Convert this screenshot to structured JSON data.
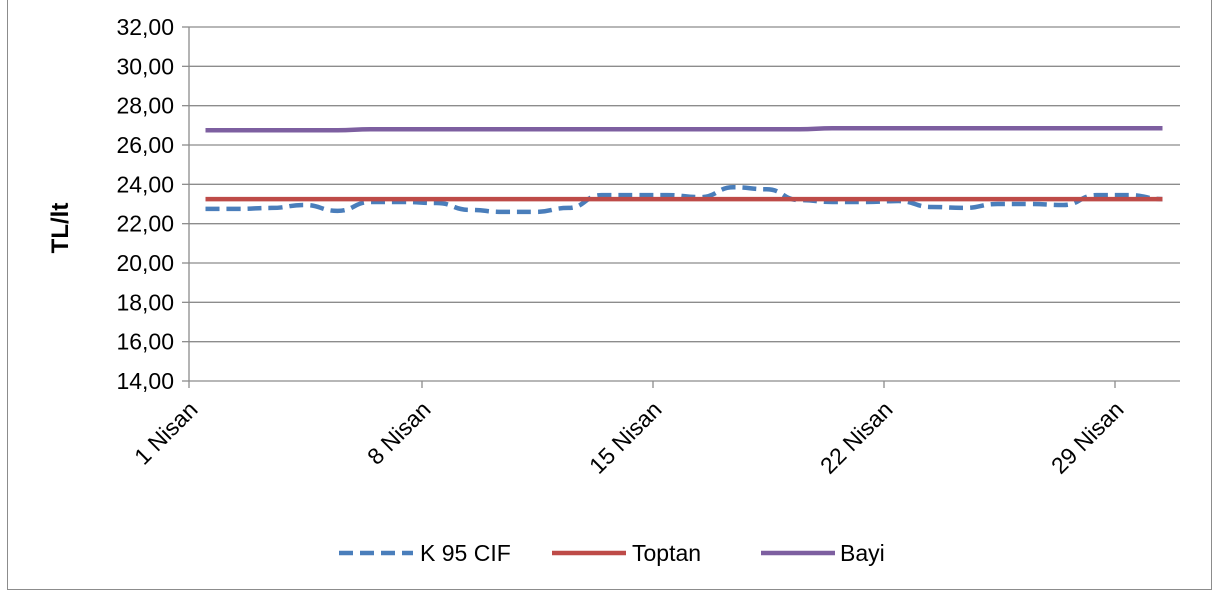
{
  "chart_data": {
    "type": "line",
    "title": "",
    "xlabel": "",
    "ylabel": "TL/lt",
    "ylim": [
      14,
      32
    ],
    "ytick_step": 2,
    "ytick_labels": [
      "14,00",
      "16,00",
      "18,00",
      "20,00",
      "22,00",
      "24,00",
      "26,00",
      "28,00",
      "30,00",
      "32,00"
    ],
    "x": [
      1,
      2,
      3,
      4,
      5,
      6,
      7,
      8,
      9,
      10,
      11,
      12,
      13,
      14,
      15,
      16,
      17,
      18,
      19,
      20,
      21,
      22,
      23,
      24,
      25,
      26,
      27,
      28,
      29,
      30
    ],
    "xtick_labels": [
      {
        "x": 1,
        "label": "1 Nisan"
      },
      {
        "x": 8,
        "label": "8 Nisan"
      },
      {
        "x": 15,
        "label": "15 Nisan"
      },
      {
        "x": 22,
        "label": "22 Nisan"
      },
      {
        "x": 29,
        "label": "29 Nisan"
      }
    ],
    "grid": "horizontal",
    "legend_position": "bottom",
    "series": [
      {
        "name": "K 95 CIF",
        "color": "#4a7ebb",
        "dash": "dashed",
        "values": [
          22.75,
          22.75,
          22.8,
          22.95,
          22.65,
          23.1,
          23.1,
          23.05,
          22.7,
          22.6,
          22.6,
          22.8,
          23.45,
          23.45,
          23.45,
          23.35,
          23.85,
          23.75,
          23.2,
          23.1,
          23.1,
          23.15,
          22.85,
          22.8,
          23.0,
          23.0,
          22.95,
          23.45,
          23.45,
          23.25
        ]
      },
      {
        "name": "Toptan",
        "color": "#be4b48",
        "dash": "solid",
        "values": [
          23.25,
          23.25,
          23.25,
          23.25,
          23.25,
          23.25,
          23.25,
          23.25,
          23.25,
          23.25,
          23.25,
          23.25,
          23.25,
          23.25,
          23.25,
          23.25,
          23.25,
          23.25,
          23.25,
          23.25,
          23.25,
          23.25,
          23.25,
          23.25,
          23.25,
          23.25,
          23.25,
          23.25,
          23.25,
          23.25
        ]
      },
      {
        "name": "Bayi",
        "color": "#7d5fa0",
        "dash": "solid",
        "values": [
          26.75,
          26.75,
          26.75,
          26.75,
          26.75,
          26.8,
          26.8,
          26.8,
          26.8,
          26.8,
          26.8,
          26.8,
          26.8,
          26.8,
          26.8,
          26.8,
          26.8,
          26.8,
          26.8,
          26.85,
          26.85,
          26.85,
          26.85,
          26.85,
          26.85,
          26.85,
          26.85,
          26.85,
          26.85,
          26.85
        ]
      }
    ]
  }
}
